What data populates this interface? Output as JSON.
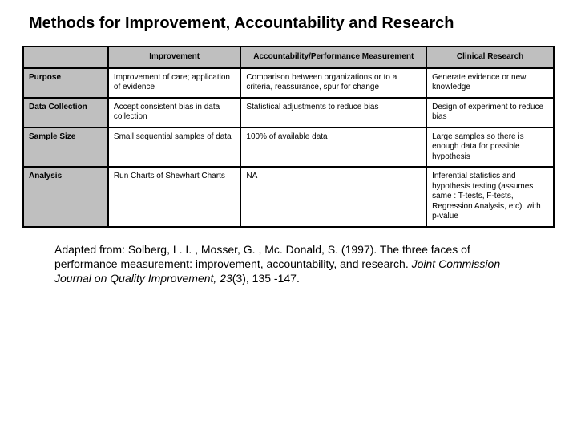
{
  "title": "Methods for Improvement, Accountability and Research",
  "table": {
    "columns": [
      "",
      "Improvement",
      "Accountability/Performance Measurement",
      "Clinical Research"
    ],
    "rows": [
      {
        "label": "Purpose",
        "cells": [
          "Improvement of care; application of evidence",
          "Comparison between organizations or to a criteria, reassurance, spur for change",
          "Generate evidence or new knowledge"
        ]
      },
      {
        "label": "Data Collection",
        "cells": [
          "Accept consistent bias in data collection",
          "Statistical adjustments to reduce bias",
          "Design of experiment to reduce bias"
        ]
      },
      {
        "label": "Sample Size",
        "cells": [
          "Small sequential samples of data",
          "100% of available data",
          "Large samples so there is enough data for possible hypothesis"
        ]
      },
      {
        "label": "Analysis",
        "cells": [
          "Run Charts of Shewhart Charts",
          "NA",
          "Inferential statistics and hypothesis testing (assumes same : T-tests, F-tests, Regression Analysis, etc). with p-value"
        ]
      }
    ],
    "header_bg": "#bfbfbf",
    "border_color": "#000000",
    "body_fontsize": 10,
    "header_fontsize": 10,
    "col_widths_pct": [
      16,
      25,
      35,
      24
    ]
  },
  "citation": {
    "prefix": "Adapted from: Solberg, L. I. , Mosser, G. , Mc. Donald, S. (1997). The three faces of performance measurement: improvement, accountability, and research. ",
    "italic": "Joint Commission Journal on Quality Improvement, 23",
    "suffix": "(3), 135 -147."
  }
}
